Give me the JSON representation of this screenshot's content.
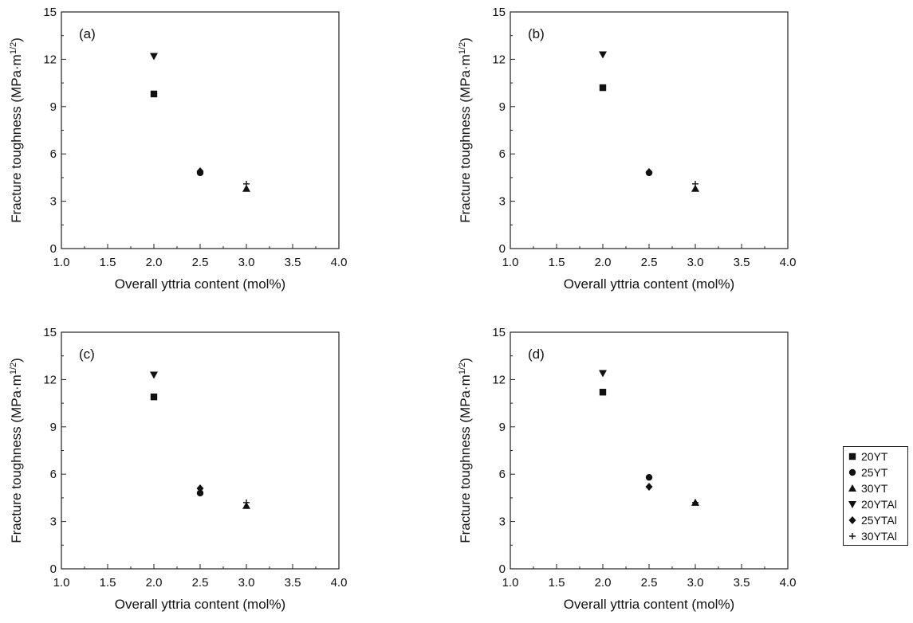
{
  "colors": {
    "marker": "#111111",
    "axis": "#222222",
    "background": "#ffffff"
  },
  "chart_data": [
    {
      "type": "scatter",
      "panel_label": "(a)",
      "xlabel": "Overall  yttria content (mol%)",
      "ylabel": "Fracture toughness (MPa·m",
      "ylabel_sup": "1/2",
      "ylabel_close": ")",
      "xlim": [
        1.0,
        4.0
      ],
      "ylim": [
        0,
        15
      ],
      "xticks": [
        "1.0",
        "1.5",
        "2.0",
        "2.5",
        "3.0",
        "3.5",
        "4.0"
      ],
      "yticks": [
        "0",
        "3",
        "6",
        "9",
        "12",
        "15"
      ],
      "series": [
        {
          "name": "20YT",
          "marker": "square",
          "x": [
            2.0
          ],
          "y": [
            9.8
          ]
        },
        {
          "name": "25YT",
          "marker": "circle",
          "x": [
            2.5
          ],
          "y": [
            4.8
          ]
        },
        {
          "name": "30YT",
          "marker": "triangle-up",
          "x": [
            3.0
          ],
          "y": [
            3.8
          ]
        },
        {
          "name": "20YTAl",
          "marker": "triangle-down",
          "x": [
            2.0
          ],
          "y": [
            12.2
          ]
        },
        {
          "name": "25YTAl",
          "marker": "diamond",
          "x": [
            2.5
          ],
          "y": [
            4.9
          ]
        },
        {
          "name": "30YTAl",
          "marker": "plus",
          "x": [
            3.0
          ],
          "y": [
            4.1
          ]
        }
      ]
    },
    {
      "type": "scatter",
      "panel_label": "(b)",
      "xlabel": "Overall  yttria content (mol%)",
      "ylabel": "Fracture toughness (MPa·m",
      "ylabel_sup": "1/2",
      "ylabel_close": ")",
      "xlim": [
        1.0,
        4.0
      ],
      "ylim": [
        0,
        15
      ],
      "xticks": [
        "1.0",
        "1.5",
        "2.0",
        "2.5",
        "3.0",
        "3.5",
        "4.0"
      ],
      "yticks": [
        "0",
        "3",
        "6",
        "9",
        "12",
        "15"
      ],
      "series": [
        {
          "name": "20YT",
          "marker": "square",
          "x": [
            2.0
          ],
          "y": [
            10.2
          ]
        },
        {
          "name": "25YT",
          "marker": "circle",
          "x": [
            2.5
          ],
          "y": [
            4.8
          ]
        },
        {
          "name": "30YT",
          "marker": "triangle-up",
          "x": [
            3.0
          ],
          "y": [
            3.8
          ]
        },
        {
          "name": "20YTAl",
          "marker": "triangle-down",
          "x": [
            2.0
          ],
          "y": [
            12.3
          ]
        },
        {
          "name": "25YTAl",
          "marker": "diamond",
          "x": [
            2.5
          ],
          "y": [
            4.85
          ]
        },
        {
          "name": "30YTAl",
          "marker": "plus",
          "x": [
            3.0
          ],
          "y": [
            4.1
          ]
        }
      ]
    },
    {
      "type": "scatter",
      "panel_label": "(c)",
      "xlabel": "Overall  yttria content (mol%)",
      "ylabel": "Fracture toughness (MPa·m",
      "ylabel_sup": "1/2",
      "ylabel_close": ")",
      "xlim": [
        1.0,
        4.0
      ],
      "ylim": [
        0,
        15
      ],
      "xticks": [
        "1.0",
        "1.5",
        "2.0",
        "2.5",
        "3.0",
        "3.5",
        "4.0"
      ],
      "yticks": [
        "0",
        "3",
        "6",
        "9",
        "12",
        "15"
      ],
      "series": [
        {
          "name": "20YT",
          "marker": "square",
          "x": [
            2.0
          ],
          "y": [
            10.9
          ]
        },
        {
          "name": "25YT",
          "marker": "circle",
          "x": [
            2.5
          ],
          "y": [
            4.8
          ]
        },
        {
          "name": "30YT",
          "marker": "triangle-up",
          "x": [
            3.0
          ],
          "y": [
            4.0
          ]
        },
        {
          "name": "20YTAl",
          "marker": "triangle-down",
          "x": [
            2.0
          ],
          "y": [
            12.3
          ]
        },
        {
          "name": "25YTAl",
          "marker": "diamond",
          "x": [
            2.5
          ],
          "y": [
            5.1
          ]
        },
        {
          "name": "30YTAl",
          "marker": "plus",
          "x": [
            3.0
          ],
          "y": [
            4.2
          ]
        }
      ]
    },
    {
      "type": "scatter",
      "panel_label": "(d)",
      "xlabel": "Overall  yttria content (mol%)",
      "ylabel": "Fracture toughness (MPa·m",
      "ylabel_sup": "1/2",
      "ylabel_close": ")",
      "xlim": [
        1.0,
        4.0
      ],
      "ylim": [
        0,
        15
      ],
      "xticks": [
        "1.0",
        "1.5",
        "2.0",
        "2.5",
        "3.0",
        "3.5",
        "4.0"
      ],
      "yticks": [
        "0",
        "3",
        "6",
        "9",
        "12",
        "15"
      ],
      "series": [
        {
          "name": "20YT",
          "marker": "square",
          "x": [
            2.0
          ],
          "y": [
            11.2
          ]
        },
        {
          "name": "25YT",
          "marker": "circle",
          "x": [
            2.5
          ],
          "y": [
            5.8
          ]
        },
        {
          "name": "30YT",
          "marker": "triangle-up",
          "x": [
            3.0
          ],
          "y": [
            4.2
          ]
        },
        {
          "name": "20YTAl",
          "marker": "triangle-down",
          "x": [
            2.0
          ],
          "y": [
            12.4
          ]
        },
        {
          "name": "25YTAl",
          "marker": "diamond",
          "x": [
            2.5
          ],
          "y": [
            5.2
          ]
        },
        {
          "name": "30YTAl",
          "marker": "plus",
          "x": [
            3.0
          ],
          "y": [
            4.2
          ]
        }
      ]
    }
  ],
  "legend": {
    "placement": "right of panel (d)",
    "items": [
      {
        "label": "20YT",
        "marker": "square"
      },
      {
        "label": "25YT",
        "marker": "circle"
      },
      {
        "label": "30YT",
        "marker": "triangle-up"
      },
      {
        "label": "20YTAl",
        "marker": "triangle-down"
      },
      {
        "label": "25YTAl",
        "marker": "diamond"
      },
      {
        "label": "30YTAl",
        "marker": "plus"
      }
    ]
  }
}
